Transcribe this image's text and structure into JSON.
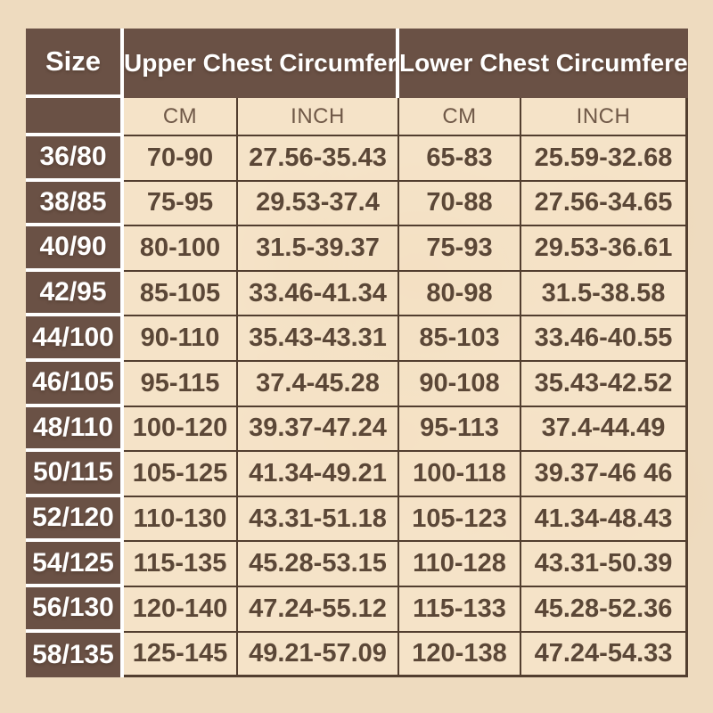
{
  "colors": {
    "page_background": "#eedbbf",
    "cell_dark_brown": "#6a5145",
    "cell_light_beige": "#f6e5ca",
    "grid_line_brown": "#523e2f",
    "separator_white": "#ffffff",
    "header_text": "#ffffff",
    "data_text": "#5b4737",
    "unit_text": "#6f5847"
  },
  "chart_data": {
    "type": "table",
    "header": {
      "size_label": "Size",
      "groups": [
        "Upper Chest Circumference",
        "Lower Chest Circumference"
      ],
      "units": [
        "CM",
        "INCH",
        "CM",
        "INCH"
      ]
    },
    "rows": [
      {
        "size": "36/80",
        "upper_cm": "70-90",
        "upper_inch": "27.56-35.43",
        "lower_cm": "65-83",
        "lower_inch": "25.59-32.68"
      },
      {
        "size": "38/85",
        "upper_cm": "75-95",
        "upper_inch": "29.53-37.4",
        "lower_cm": "70-88",
        "lower_inch": "27.56-34.65"
      },
      {
        "size": "40/90",
        "upper_cm": "80-100",
        "upper_inch": "31.5-39.37",
        "lower_cm": "75-93",
        "lower_inch": "29.53-36.61"
      },
      {
        "size": "42/95",
        "upper_cm": "85-105",
        "upper_inch": "33.46-41.34",
        "lower_cm": "80-98",
        "lower_inch": "31.5-38.58"
      },
      {
        "size": "44/100",
        "upper_cm": "90-110",
        "upper_inch": "35.43-43.31",
        "lower_cm": "85-103",
        "lower_inch": "33.46-40.55"
      },
      {
        "size": "46/105",
        "upper_cm": "95-115",
        "upper_inch": "37.4-45.28",
        "lower_cm": "90-108",
        "lower_inch": "35.43-42.52"
      },
      {
        "size": "48/110",
        "upper_cm": "100-120",
        "upper_inch": "39.37-47.24",
        "lower_cm": "95-113",
        "lower_inch": "37.4-44.49"
      },
      {
        "size": "50/115",
        "upper_cm": "105-125",
        "upper_inch": "41.34-49.21",
        "lower_cm": "100-118",
        "lower_inch": "39.37-46 46"
      },
      {
        "size": "52/120",
        "upper_cm": "110-130",
        "upper_inch": "43.31-51.18",
        "lower_cm": "105-123",
        "lower_inch": "41.34-48.43"
      },
      {
        "size": "54/125",
        "upper_cm": "115-135",
        "upper_inch": "45.28-53.15",
        "lower_cm": "110-128",
        "lower_inch": "43.31-50.39"
      },
      {
        "size": "56/130",
        "upper_cm": "120-140",
        "upper_inch": "47.24-55.12",
        "lower_cm": "115-133",
        "lower_inch": "45.28-52.36"
      },
      {
        "size": "58/135",
        "upper_cm": "125-145",
        "upper_inch": "49.21-57.09",
        "lower_cm": "120-138",
        "lower_inch": "47.24-54.33"
      }
    ]
  }
}
